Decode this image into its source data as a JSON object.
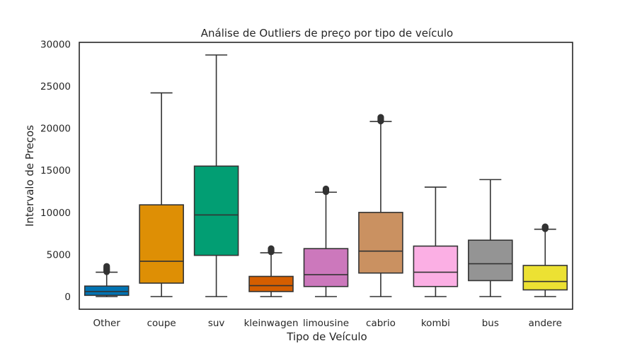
{
  "chart_data": {
    "type": "box",
    "title": "Análise de Outliers de preço por tipo de veículo",
    "xlabel": "Tipo de Veículo",
    "ylabel": "Intervalo de Preços",
    "ylim": [
      -1500,
      30200
    ],
    "yticks": [
      0,
      5000,
      10000,
      15000,
      20000,
      25000,
      30000
    ],
    "grid": false,
    "categories": [
      "Other",
      "coupe",
      "suv",
      "kleinwagen",
      "limousine",
      "cabrio",
      "kombi",
      "bus",
      "andere"
    ],
    "colors": [
      "#0173b2",
      "#de8f05",
      "#029e73",
      "#d55e00",
      "#cc78bc",
      "#ca9161",
      "#fbafe4",
      "#949494",
      "#ece133"
    ],
    "boxes": [
      {
        "whisker_low": 0,
        "q1": 150,
        "median": 600,
        "q3": 1250,
        "whisker_high": 2900,
        "outliers_low": 2950,
        "outliers_high": 3600
      },
      {
        "whisker_low": 0,
        "q1": 1600,
        "median": 4200,
        "q3": 10900,
        "whisker_high": 24200,
        "outliers_low": null,
        "outliers_high": null
      },
      {
        "whisker_low": 0,
        "q1": 4900,
        "median": 9700,
        "q3": 15500,
        "whisker_high": 28700,
        "outliers_low": null,
        "outliers_high": null
      },
      {
        "whisker_low": 0,
        "q1": 600,
        "median": 1300,
        "q3": 2400,
        "whisker_high": 5200,
        "outliers_low": 5300,
        "outliers_high": 5700
      },
      {
        "whisker_low": 0,
        "q1": 1200,
        "median": 2600,
        "q3": 5700,
        "whisker_high": 12400,
        "outliers_low": 12450,
        "outliers_high": 12800
      },
      {
        "whisker_low": 0,
        "q1": 2800,
        "median": 5400,
        "q3": 10000,
        "whisker_high": 20800,
        "outliers_low": 20850,
        "outliers_high": 21300
      },
      {
        "whisker_low": 0,
        "q1": 1200,
        "median": 2900,
        "q3": 6000,
        "whisker_high": 13000,
        "outliers_low": null,
        "outliers_high": null
      },
      {
        "whisker_low": 0,
        "q1": 1900,
        "median": 3900,
        "q3": 6700,
        "whisker_high": 13900,
        "outliers_low": null,
        "outliers_high": null
      },
      {
        "whisker_low": 0,
        "q1": 800,
        "median": 1800,
        "q3": 3700,
        "whisker_high": 8000,
        "outliers_low": 8050,
        "outliers_high": 8300
      }
    ]
  }
}
